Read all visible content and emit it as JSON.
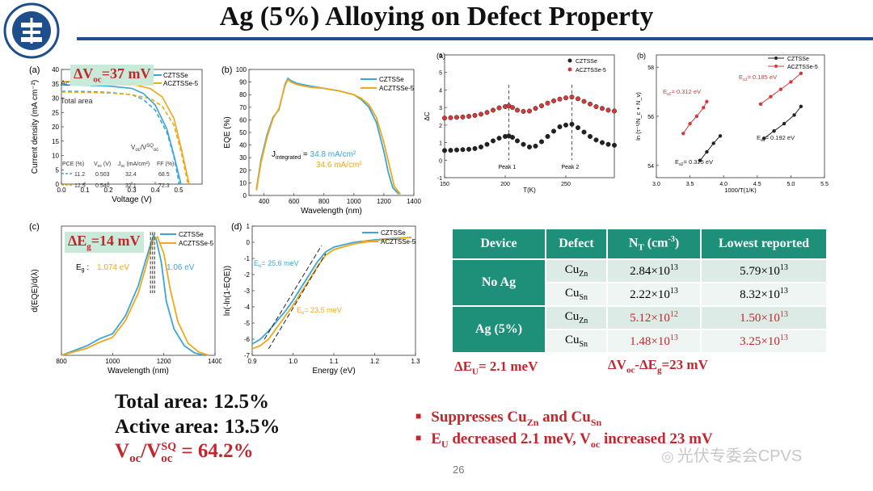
{
  "title": "Ag (5%) Alloying on Defect Property",
  "logo": {
    "text_ring": "南京邮电大学 NANJING UNIVERSITY OF POSTS AND TELECOMMUNICATIONS",
    "year": "1942"
  },
  "colors": {
    "blue": "#3aa6d8",
    "orange": "#f0a818",
    "black": "#222222",
    "red": "#d23a3a",
    "teal": "#1e8f78",
    "accent_red": "#c1272d",
    "rule": "#1f4e8c"
  },
  "panel_a_jv": {
    "label": "(a)",
    "highlight": "ΔV",
    "highlight_sub": "oc",
    "highlight_tail": "=37 mV",
    "legend": [
      "CZTSSe",
      "ACZTSSe-5"
    ],
    "text_active": "Ac",
    "text_total": "Total area",
    "ratio_label": "V",
    "ratio_sub": "oc",
    "ratio_slash": "/V",
    "ratio_sup": "SQ",
    "ratio_sub2": "oc",
    "table_header": [
      "PCE (%)",
      "V",
      "J",
      "FF (%)"
    ],
    "table_header_subs": [
      "",
      "oc",
      "sc",
      ""
    ],
    "table_header_units": [
      "",
      " (V)",
      " (mA/cm²)",
      ""
    ],
    "table_rows": [
      [
        "11.2",
        "0.503",
        "32.4",
        "68.5"
      ],
      [
        "12.5",
        "0.540",
        "32.1",
        "72.3"
      ]
    ],
    "chart_data": {
      "type": "line",
      "xlabel": "Voltage (V)",
      "ylabel": "Current density (mA cm⁻²)",
      "xlim": [
        0,
        0.6
      ],
      "ylim": [
        0,
        40
      ],
      "xticks": [
        "0.0",
        "0.1",
        "0.2",
        "0.3",
        "0.4",
        "0.5"
      ],
      "yticks": [
        "0",
        "5",
        "10",
        "15",
        "20",
        "25",
        "30",
        "35",
        "40"
      ],
      "series": [
        {
          "name": "CZTSSe total",
          "style": "dashed",
          "color": "blue",
          "x": [
            0,
            0.1,
            0.2,
            0.3,
            0.35,
            0.4,
            0.45,
            0.48,
            0.503
          ],
          "y": [
            32.4,
            32.3,
            32.0,
            31.2,
            29.5,
            25.8,
            18.0,
            9.5,
            0
          ]
        },
        {
          "name": "ACZTSSe-5 total",
          "style": "dashed",
          "color": "orange",
          "x": [
            0,
            0.1,
            0.2,
            0.3,
            0.38,
            0.43,
            0.48,
            0.51,
            0.54
          ],
          "y": [
            32.1,
            32.0,
            31.8,
            31.2,
            29.8,
            27.2,
            20.5,
            11.5,
            0
          ]
        },
        {
          "name": "CZTSSe active",
          "style": "solid",
          "color": "blue",
          "x": [
            0,
            0.1,
            0.2,
            0.3,
            0.35,
            0.4,
            0.45,
            0.48,
            0.51
          ],
          "y": [
            34.6,
            34.5,
            34.2,
            33.4,
            31.6,
            27.6,
            19.2,
            10.0,
            0
          ]
        },
        {
          "name": "ACZTSSe-5 active",
          "style": "solid",
          "color": "orange",
          "x": [
            0,
            0.1,
            0.2,
            0.3,
            0.38,
            0.43,
            0.48,
            0.51,
            0.545
          ],
          "y": [
            35.8,
            35.7,
            35.5,
            34.9,
            33.3,
            30.4,
            22.9,
            12.8,
            0
          ]
        }
      ]
    }
  },
  "panel_b_eqe": {
    "label": "(b)",
    "legend": [
      "CZTSSe",
      "ACZTSSe-5"
    ],
    "j_label": "J",
    "j_sub": "integrated",
    "j_eq": " = ",
    "j_val1": "34.8 mA/cm²",
    "j_val2": "34.6 mA/cm²",
    "chart_data": {
      "type": "line",
      "xlabel": "Wavelength (nm)",
      "ylabel": "EQE (%)",
      "xlim": [
        300,
        1400
      ],
      "ylim": [
        0,
        100
      ],
      "xticks": [
        "400",
        "600",
        "800",
        "1000",
        "1200",
        "1400"
      ],
      "yticks": [
        "0",
        "10",
        "20",
        "30",
        "40",
        "50",
        "60",
        "70",
        "80",
        "90",
        "100"
      ],
      "series": [
        {
          "name": "CZTSSe",
          "color": "blue",
          "x": [
            350,
            380,
            420,
            460,
            500,
            540,
            560,
            580,
            620,
            700,
            800,
            900,
            1000,
            1050,
            1100,
            1150,
            1200,
            1230,
            1260,
            1300
          ],
          "y": [
            5,
            28,
            48,
            62,
            68,
            88,
            93,
            91,
            89,
            87,
            85,
            83,
            80,
            76,
            70,
            58,
            35,
            18,
            6,
            1
          ]
        },
        {
          "name": "ACZTSSe-5",
          "color": "orange",
          "x": [
            350,
            380,
            420,
            460,
            500,
            540,
            560,
            580,
            620,
            700,
            800,
            900,
            1000,
            1050,
            1100,
            1150,
            1200,
            1240,
            1270,
            1310
          ],
          "y": [
            4,
            26,
            46,
            61,
            69,
            87,
            92,
            90,
            88,
            86,
            85,
            83,
            80,
            77,
            72,
            62,
            42,
            22,
            7,
            1
          ]
        }
      ]
    }
  },
  "panel_c_deriv": {
    "label": "(c)",
    "highlight": "ΔE",
    "highlight_sub": "g",
    "highlight_tail": "=14 mV",
    "legend": [
      "CZTSSe",
      "ACZTSSe-5"
    ],
    "eg_label": "E",
    "eg_sub": "g",
    "eg_colon": " :",
    "eg_val1": "1.074 eV",
    "eg_val2": "1.06 eV",
    "chart_data": {
      "type": "line",
      "xlabel": "Wavelength (nm)",
      "ylabel": "d(EQE)/d(λ)",
      "xlim": [
        800,
        1400
      ],
      "xticks": [
        "800",
        "1000",
        "1200",
        "1400"
      ],
      "series": [
        {
          "name": "CZTSSe",
          "color": "blue",
          "x": [
            800,
            900,
            950,
            1000,
            1050,
            1100,
            1130,
            1150,
            1160,
            1170,
            1190,
            1210,
            1240,
            1280,
            1320,
            1360
          ],
          "y": [
            0.0,
            0.08,
            0.14,
            0.18,
            0.33,
            0.58,
            0.8,
            0.94,
            1.0,
            0.97,
            0.78,
            0.45,
            0.22,
            0.08,
            0.02,
            0.0
          ]
        },
        {
          "name": "ACZTSSe-5",
          "color": "orange",
          "x": [
            800,
            900,
            950,
            1000,
            1050,
            1100,
            1130,
            1150,
            1160,
            1175,
            1200,
            1225,
            1255,
            1295,
            1335,
            1375
          ],
          "y": [
            0.0,
            0.06,
            0.11,
            0.15,
            0.29,
            0.52,
            0.74,
            0.9,
            0.97,
            0.99,
            0.85,
            0.55,
            0.28,
            0.1,
            0.03,
            0.0
          ]
        }
      ]
    }
  },
  "panel_d_urbach": {
    "label": "(d)",
    "legend": [
      "CZTSSe",
      "ACZTSSe-5"
    ],
    "eu_label": "E",
    "eu_sub": "u",
    "eu_val1": "= 25.6 meV",
    "eu_val2": "= 23.5 meV",
    "chart_data": {
      "type": "line",
      "xlabel": "Energy (eV)",
      "ylabel": "ln(-ln(1-EQE))",
      "xlim": [
        0.9,
        1.3
      ],
      "ylim": [
        -7,
        1
      ],
      "xticks": [
        "0.9",
        "1.0",
        "1.1",
        "1.2",
        "1.3"
      ],
      "yticks": [
        "-7",
        "-6",
        "-5",
        "-4",
        "-3",
        "-2",
        "-1",
        "0",
        "1"
      ],
      "series": [
        {
          "name": "CZTSSe",
          "color": "blue",
          "x": [
            0.9,
            0.92,
            0.94,
            0.96,
            0.98,
            1.0,
            1.02,
            1.04,
            1.06,
            1.08,
            1.1,
            1.15,
            1.2,
            1.25,
            1.29
          ],
          "y": [
            -6.3,
            -6.0,
            -5.5,
            -4.9,
            -4.3,
            -3.6,
            -2.8,
            -2.0,
            -1.2,
            -0.6,
            -0.3,
            0.0,
            0.15,
            0.25,
            0.3
          ]
        },
        {
          "name": "ACZTSSe-5",
          "color": "orange",
          "x": [
            0.9,
            0.92,
            0.94,
            0.96,
            0.98,
            1.0,
            1.02,
            1.04,
            1.06,
            1.08,
            1.1,
            1.15,
            1.2,
            1.25,
            1.29
          ],
          "y": [
            -6.6,
            -6.4,
            -6.0,
            -5.3,
            -4.6,
            -3.9,
            -3.1,
            -2.3,
            -1.5,
            -0.8,
            -0.45,
            -0.1,
            0.1,
            0.22,
            0.3
          ]
        }
      ]
    }
  },
  "panel_e_dlcp": {
    "label": "(a)",
    "legend": [
      "CZTSSe",
      "ACZTSSe-5"
    ],
    "peak1": "Peak 1",
    "peak2": "Peak 2",
    "chart_data": {
      "type": "scatter",
      "xlabel": "T(K)",
      "ylabel": "ΔC",
      "xlim": [
        150,
        290
      ],
      "ylim": [
        -1,
        6
      ],
      "xticks": [
        "150",
        "200",
        "250"
      ],
      "yticks": [
        "-1",
        "0",
        "1",
        "2",
        "3",
        "4",
        "5",
        "6"
      ],
      "series": [
        {
          "name": "CZTSSe",
          "color": "black",
          "x": [
            150,
            155,
            160,
            165,
            170,
            175,
            180,
            185,
            190,
            195,
            200,
            203,
            206,
            210,
            215,
            220,
            225,
            230,
            235,
            240,
            245,
            250,
            255,
            260,
            265,
            270,
            275,
            280,
            285,
            290
          ],
          "y": [
            0.55,
            0.56,
            0.58,
            0.6,
            0.62,
            0.66,
            0.75,
            0.9,
            1.1,
            1.25,
            1.35,
            1.38,
            1.3,
            1.1,
            0.9,
            0.75,
            0.8,
            1.05,
            1.35,
            1.65,
            1.9,
            2.0,
            2.05,
            1.85,
            1.6,
            1.35,
            1.15,
            1.0,
            0.9,
            0.85
          ]
        },
        {
          "name": "ACZTSSe-5",
          "color": "red",
          "x": [
            150,
            155,
            160,
            165,
            170,
            175,
            180,
            185,
            190,
            195,
            200,
            203,
            206,
            210,
            215,
            220,
            225,
            230,
            235,
            240,
            245,
            250,
            255,
            260,
            265,
            270,
            275,
            280,
            285,
            290
          ],
          "y": [
            2.4,
            2.42,
            2.44,
            2.46,
            2.5,
            2.55,
            2.62,
            2.72,
            2.85,
            2.98,
            3.05,
            3.1,
            3.0,
            2.85,
            2.78,
            2.8,
            2.95,
            3.1,
            3.25,
            3.38,
            3.48,
            3.55,
            3.6,
            3.5,
            3.35,
            3.2,
            3.05,
            2.95,
            2.85,
            2.8
          ]
        }
      ]
    }
  },
  "panel_f_arrhenius": {
    "label": "(b)",
    "legend": [
      "CZTSSe",
      "ACZTSSe-5"
    ],
    "ea_labels": [
      "E",
      "E",
      "E",
      "E"
    ],
    "ea_subs": [
      "a2",
      "a1",
      "a2",
      "a1"
    ],
    "ea_vals": [
      "= 0.312 eV",
      "= 0.185 eV",
      "= 0.325 eV",
      "= 0.192 eV"
    ],
    "chart_data": {
      "type": "line",
      "xlabel": "1000/T(1/K)",
      "ylabel": "ln (τ⁻¹/N_c + N_v)",
      "xlim": [
        3.0,
        5.5
      ],
      "ylim": [
        53.5,
        58.5
      ],
      "xticks": [
        "3.0",
        "3.5",
        "4.0",
        "4.5",
        "5.0",
        "5.5"
      ],
      "yticks": [
        "54",
        "56",
        "58"
      ],
      "series": [
        {
          "name": "ACZTSSe-5 Ea2",
          "color": "red",
          "x": [
            3.4,
            3.5,
            3.6,
            3.7,
            3.75
          ],
          "y": [
            55.3,
            55.7,
            56.0,
            56.35,
            56.6
          ]
        },
        {
          "name": "ACZTSSe-5 Ea1",
          "color": "red",
          "x": [
            4.55,
            4.7,
            4.85,
            5.0,
            5.15
          ],
          "y": [
            56.5,
            56.8,
            57.1,
            57.4,
            57.75
          ]
        },
        {
          "name": "CZTSSe Ea2",
          "color": "black",
          "x": [
            3.65,
            3.75,
            3.85,
            3.95
          ],
          "y": [
            54.2,
            54.55,
            54.9,
            55.2
          ]
        },
        {
          "name": "CZTSSe Ea1",
          "color": "black",
          "x": [
            4.6,
            4.75,
            4.9,
            5.05,
            5.15
          ],
          "y": [
            55.1,
            55.4,
            55.7,
            56.05,
            56.4
          ]
        }
      ]
    }
  },
  "table": {
    "headers": [
      "Device",
      "Defect",
      "N",
      "Lowest reported"
    ],
    "nt_sub": "T",
    "nt_unit": " (cm",
    "nt_sup": "-3",
    "nt_close": ")",
    "groups": [
      {
        "name": "No Ag",
        "rows": [
          {
            "defect": "Cu",
            "defect_sub": "Zn",
            "nt": "2.84×10",
            "nt_exp": "13",
            "low": "5.79×10",
            "low_exp": "13",
            "red": false
          },
          {
            "defect": "Cu",
            "defect_sub": "Sn",
            "nt": "2.22×10",
            "nt_exp": "13",
            "low": "8.32×10",
            "low_exp": "13",
            "red": false
          }
        ]
      },
      {
        "name": "Ag (5%)",
        "rows": [
          {
            "defect": "Cu",
            "defect_sub": "Zn",
            "nt": "5.12×10",
            "nt_exp": "12",
            "low": "1.50×10",
            "low_exp": "13",
            "red": true
          },
          {
            "defect": "Cu",
            "defect_sub": "Sn",
            "nt": "1.48×10",
            "nt_exp": "13",
            "low": "3.25×10",
            "low_exp": "13",
            "red": true
          }
        ]
      }
    ]
  },
  "delta_eu": {
    "prefix": "ΔE",
    "sub": "U",
    "tail": "= 2.1 meV"
  },
  "delta_voc_eg": {
    "p1": "ΔV",
    "s1": "oc",
    "p2": "-ΔE",
    "s2": "g",
    "tail": "=23 mV"
  },
  "summary": {
    "total": "Total area: 12.5%",
    "active": "Active area: 13.5%",
    "ratio_v": "V",
    "ratio_sub": "oc",
    "ratio_slash": "/V",
    "ratio_sub2": "oc",
    "ratio_sup": "SQ",
    "ratio_val": " = 64.2%"
  },
  "bullets": [
    {
      "t1": "Suppresses Cu",
      "s1": "Zn",
      "t2": " and Cu",
      "s2": "Sn",
      "t3": "",
      "s3": "",
      "t4": ""
    },
    {
      "t1": "E",
      "s1": "U",
      "t2": " decreased 2.1 meV, V",
      "s2": "oc",
      "t3": " increased 23 mV",
      "s3": "",
      "t4": ""
    }
  ],
  "page_number": "26",
  "watermark": "光伏专委会CPVS"
}
